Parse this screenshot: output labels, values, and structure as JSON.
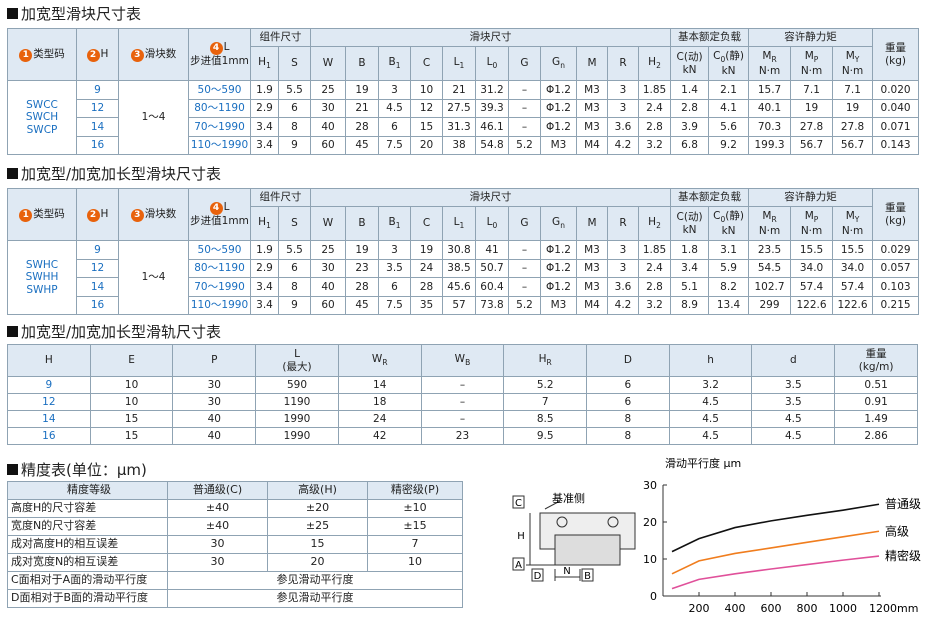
{
  "sections": [
    {
      "title": "加宽型滑块尺寸表",
      "table": {
        "head_main": [
          {
            "num": "1",
            "main": "类型码"
          },
          {
            "num": "2",
            "main": "H"
          },
          {
            "num": "3",
            "main": "滑块数"
          },
          {
            "num": "4",
            "main": "L",
            "unit": "步进值1mm"
          }
        ],
        "groups": [
          "组件尺寸",
          "滑块尺寸",
          "基本额定负载",
          "容许静力矩"
        ],
        "weight": {
          "main": "重量",
          "unit": "(kg)"
        },
        "columns": [
          {
            "main": "H",
            "sub": "1"
          },
          {
            "main": "S"
          },
          {
            "main": "W"
          },
          {
            "main": "B"
          },
          {
            "main": "B",
            "sub": "1"
          },
          {
            "main": "C"
          },
          {
            "main": "L",
            "sub": "1"
          },
          {
            "main": "L",
            "sub": "0"
          },
          {
            "main": "G"
          },
          {
            "main": "G",
            "sub": "n"
          },
          {
            "main": "M"
          },
          {
            "main": "R"
          },
          {
            "main": "H",
            "sub": "2"
          },
          {
            "main": "C(动)",
            "unit": "kN"
          },
          {
            "main": "C",
            "sub": "0",
            "tail": "(静)",
            "unit": "kN"
          },
          {
            "main": "M",
            "sub": "R",
            "unit": "N·m"
          },
          {
            "main": "M",
            "sub": "P",
            "unit": "N·m"
          },
          {
            "main": "M",
            "sub": "Y",
            "unit": "N·m"
          }
        ],
        "type_codes": [
          "SWCC",
          "SWCH",
          "SWCP"
        ],
        "slider_count": "1～4",
        "rows": [
          {
            "H": "9",
            "L": "50～590",
            "cells": [
              "1.9",
              "5.5",
              "25",
              "19",
              "3",
              "10",
              "21",
              "31.2",
              "–",
              "Φ1.2",
              "M3",
              "3",
              "1.85",
              "1.4",
              "2.1",
              "15.7",
              "7.1",
              "7.1",
              "0.020"
            ]
          },
          {
            "H": "12",
            "L": "80～1190",
            "cells": [
              "2.9",
              "6",
              "30",
              "21",
              "4.5",
              "12",
              "27.5",
              "39.3",
              "–",
              "Φ1.2",
              "M3",
              "3",
              "2.4",
              "2.8",
              "4.1",
              "40.1",
              "19",
              "19",
              "0.040"
            ]
          },
          {
            "H": "14",
            "L": "70～1990",
            "cells": [
              "3.4",
              "8",
              "40",
              "28",
              "6",
              "15",
              "31.3",
              "46.1",
              "–",
              "Φ1.2",
              "M3",
              "3.6",
              "2.8",
              "3.9",
              "5.6",
              "70.3",
              "27.8",
              "27.8",
              "0.071"
            ]
          },
          {
            "H": "16",
            "L": "110～1990",
            "cells": [
              "3.4",
              "9",
              "60",
              "45",
              "7.5",
              "20",
              "38",
              "54.8",
              "5.2",
              "M3",
              "M4",
              "4.2",
              "3.2",
              "6.8",
              "9.2",
              "199.3",
              "56.7",
              "56.7",
              "0.143"
            ]
          }
        ]
      }
    },
    {
      "title": "加宽型/加宽加长型滑块尺寸表",
      "table": {
        "head_main": [
          {
            "num": "1",
            "main": "类型码"
          },
          {
            "num": "2",
            "main": "H"
          },
          {
            "num": "3",
            "main": "滑块数"
          },
          {
            "num": "4",
            "main": "L",
            "unit": "步进值1mm"
          }
        ],
        "groups": [
          "组件尺寸",
          "滑块尺寸",
          "基本额定负载",
          "容许静力矩"
        ],
        "weight": {
          "main": "重量",
          "unit": "(kg)"
        },
        "columns": [
          {
            "main": "H",
            "sub": "1"
          },
          {
            "main": "S"
          },
          {
            "main": "W"
          },
          {
            "main": "B"
          },
          {
            "main": "B",
            "sub": "1"
          },
          {
            "main": "C"
          },
          {
            "main": "L",
            "sub": "1"
          },
          {
            "main": "L",
            "sub": "0"
          },
          {
            "main": "G"
          },
          {
            "main": "G",
            "sub": "n"
          },
          {
            "main": "M"
          },
          {
            "main": "R"
          },
          {
            "main": "H",
            "sub": "2"
          },
          {
            "main": "C(动)",
            "unit": "kN"
          },
          {
            "main": "C",
            "sub": "0",
            "tail": "(静)",
            "unit": "kN"
          },
          {
            "main": "M",
            "sub": "R",
            "unit": "N·m"
          },
          {
            "main": "M",
            "sub": "P",
            "unit": "N·m"
          },
          {
            "main": "M",
            "sub": "Y",
            "unit": "N·m"
          }
        ],
        "type_codes": [
          "SWHC",
          "SWHH",
          "SWHP"
        ],
        "slider_count": "1～4",
        "rows": [
          {
            "H": "9",
            "L": "50～590",
            "cells": [
              "1.9",
              "5.5",
              "25",
              "19",
              "3",
              "19",
              "30.8",
              "41",
              "–",
              "Φ1.2",
              "M3",
              "3",
              "1.85",
              "1.8",
              "3.1",
              "23.5",
              "15.5",
              "15.5",
              "0.029"
            ]
          },
          {
            "H": "12",
            "L": "80～1190",
            "cells": [
              "2.9",
              "6",
              "30",
              "23",
              "3.5",
              "24",
              "38.5",
              "50.7",
              "–",
              "Φ1.2",
              "M3",
              "3",
              "2.4",
              "3.4",
              "5.9",
              "54.5",
              "34.0",
              "34.0",
              "0.057"
            ]
          },
          {
            "H": "14",
            "L": "70～1990",
            "cells": [
              "3.4",
              "8",
              "40",
              "28",
              "6",
              "28",
              "45.6",
              "60.4",
              "–",
              "Φ1.2",
              "M3",
              "3.6",
              "2.8",
              "5.1",
              "8.2",
              "102.7",
              "57.4",
              "57.4",
              "0.103"
            ]
          },
          {
            "H": "16",
            "L": "110～1990",
            "cells": [
              "3.4",
              "9",
              "60",
              "45",
              "7.5",
              "35",
              "57",
              "73.8",
              "5.2",
              "M3",
              "M4",
              "4.2",
              "3.2",
              "8.9",
              "13.4",
              "299",
              "122.6",
              "122.6",
              "0.215"
            ]
          }
        ]
      }
    },
    {
      "title": "加宽型/加宽加长型滑轨尺寸表",
      "rail": {
        "header": [
          {
            "main": "H"
          },
          {
            "main": "E"
          },
          {
            "main": "P"
          },
          {
            "main": "L",
            "unit": "(最大)"
          },
          {
            "main": "W",
            "sub": "R"
          },
          {
            "main": "W",
            "sub": "B"
          },
          {
            "main": "H",
            "sub": "R"
          },
          {
            "main": "D"
          },
          {
            "main": "h"
          },
          {
            "main": "d"
          },
          {
            "main": "重量",
            "unit": "(kg/m)"
          }
        ],
        "rows": [
          [
            "9",
            "10",
            "30",
            "590",
            "14",
            "–",
            "5.2",
            "6",
            "3.2",
            "3.5",
            "0.51"
          ],
          [
            "12",
            "10",
            "30",
            "1190",
            "18",
            "–",
            "7",
            "6",
            "4.5",
            "3.5",
            "0.91"
          ],
          [
            "14",
            "15",
            "40",
            "1990",
            "24",
            "–",
            "8.5",
            "8",
            "4.5",
            "4.5",
            "1.49"
          ],
          [
            "16",
            "15",
            "40",
            "1990",
            "42",
            "23",
            "9.5",
            "8",
            "4.5",
            "4.5",
            "2.86"
          ]
        ]
      }
    },
    {
      "title": "精度表(单位：μm)",
      "precision": {
        "header": [
          "精度等级",
          "普通级(C)",
          "高级(H)",
          "精密级(P)"
        ],
        "rows": [
          [
            "高度H的尺寸容差",
            "±40",
            "±20",
            "±10"
          ],
          [
            "宽度N的尺寸容差",
            "±40",
            "±25",
            "±15"
          ],
          [
            "成对高度H的相互误差",
            "30",
            "15",
            "7"
          ],
          [
            "成对宽度N的相互误差",
            "30",
            "20",
            "10"
          ],
          [
            "C面相对于A面的滑动平行度",
            "参见滑动平行度"
          ],
          [
            "D面相对于B面的滑动平行度",
            "参见滑动平行度"
          ]
        ]
      }
    }
  ],
  "diagram": {
    "datum": "基准侧",
    "C": "C",
    "H": "H",
    "A": "A",
    "D": "D",
    "N": "N",
    "B": "B"
  },
  "chart_data": {
    "type": "line",
    "title": "滑动平行度 μm",
    "x": [
      50,
      200,
      400,
      600,
      800,
      1000,
      1200
    ],
    "series": [
      {
        "name": "普通级",
        "color": "#111111",
        "values": [
          12,
          15.5,
          18.5,
          20.3,
          21.8,
          23.2,
          24.8
        ]
      },
      {
        "name": "高级",
        "color": "#f07d1e",
        "values": [
          6,
          9.5,
          11.5,
          13,
          14.5,
          16,
          17.5
        ]
      },
      {
        "name": "精密级",
        "color": "#e0509a",
        "values": [
          2,
          4.5,
          6,
          7.3,
          8.5,
          9.7,
          10.8
        ]
      }
    ],
    "xlim": [
      0,
      1200
    ],
    "ylim": [
      0,
      30
    ],
    "xticks": [
      200,
      400,
      600,
      800,
      1000,
      {
        "value": 1200,
        "label": "1200mm"
      }
    ],
    "yticks": [
      0,
      10,
      20,
      30
    ],
    "grid": false
  }
}
